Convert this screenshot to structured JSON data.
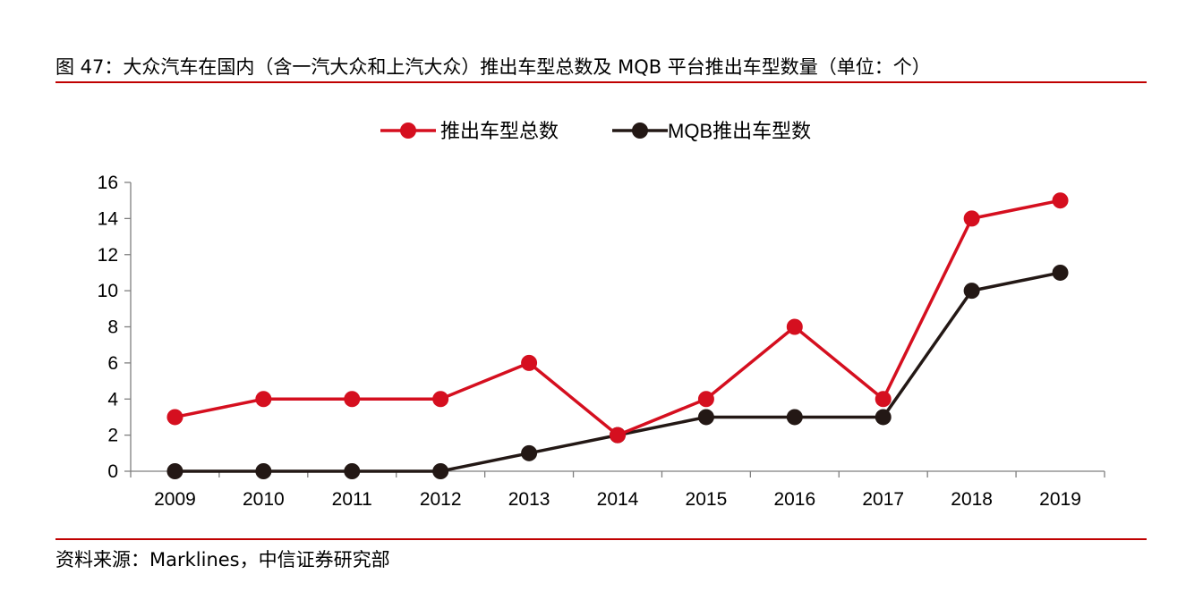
{
  "figure": {
    "title": "图 47：大众汽车在国内（含一汽大众和上汽大众）推出车型总数及 MQB 平台推出车型数量（单位：个）",
    "source": "资料来源：Marklines，中信证券研究部"
  },
  "colors": {
    "accent": "#c00000",
    "series_total": "#d50f1f",
    "series_mqb": "#231815"
  },
  "chart_data": {
    "type": "line",
    "title": "",
    "xlabel": "",
    "ylabel": "",
    "ylim": [
      0,
      16
    ],
    "yticks": [
      0,
      2,
      4,
      6,
      8,
      10,
      12,
      14,
      16
    ],
    "categories": [
      "2009",
      "2010",
      "2011",
      "2012",
      "2013",
      "2014",
      "2015",
      "2016",
      "2017",
      "2018",
      "2019"
    ],
    "series": [
      {
        "name": "推出车型总数",
        "color": "#d50f1f",
        "values": [
          3,
          4,
          4,
          4,
          6,
          2,
          4,
          8,
          4,
          14,
          15
        ]
      },
      {
        "name": "MQB推出车型数",
        "color": "#231815",
        "values": [
          0,
          0,
          0,
          0,
          1,
          2,
          3,
          3,
          3,
          10,
          11
        ]
      }
    ],
    "legend_position": "top-center",
    "grid": false
  }
}
